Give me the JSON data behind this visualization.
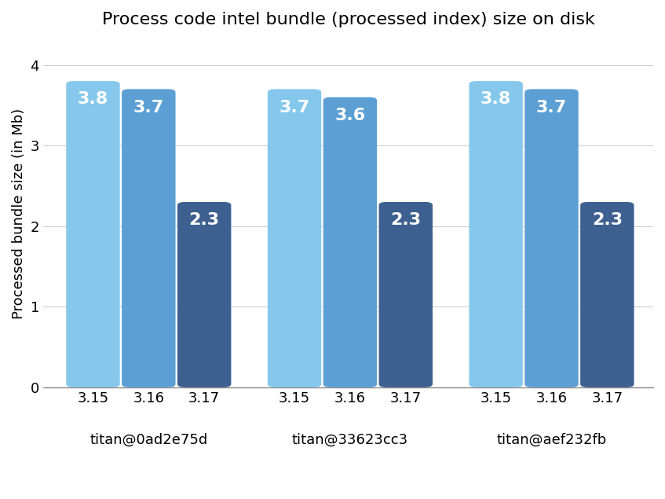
{
  "title": "Process code intel bundle (processed index) size on disk",
  "ylabel": "Processed bundle size (in Mb)",
  "groups": [
    "titan@0ad2e75d",
    "titan@33623cc3",
    "titan@aef232fb"
  ],
  "subgroups": [
    "3.15",
    "3.16",
    "3.17"
  ],
  "values": [
    [
      3.8,
      3.7,
      2.3
    ],
    [
      3.7,
      3.6,
      2.3
    ],
    [
      3.8,
      3.7,
      2.3
    ]
  ],
  "bar_colors": [
    [
      "#85C8EC",
      "#5B9FD4",
      "#3D6090"
    ],
    [
      "#85C8EC",
      "#5B9FD4",
      "#3D6090"
    ],
    [
      "#85C8EC",
      "#5B9FD4",
      "#3D6090"
    ]
  ],
  "ylim": [
    0,
    4.3
  ],
  "yticks": [
    0,
    1,
    2,
    3,
    4
  ],
  "background_color": "#ffffff",
  "grid_color": "#d0d0d0",
  "label_color": "#ffffff",
  "label_fontsize": 16,
  "title_fontsize": 16,
  "axis_fontsize": 13,
  "group_label_fontsize": 13
}
